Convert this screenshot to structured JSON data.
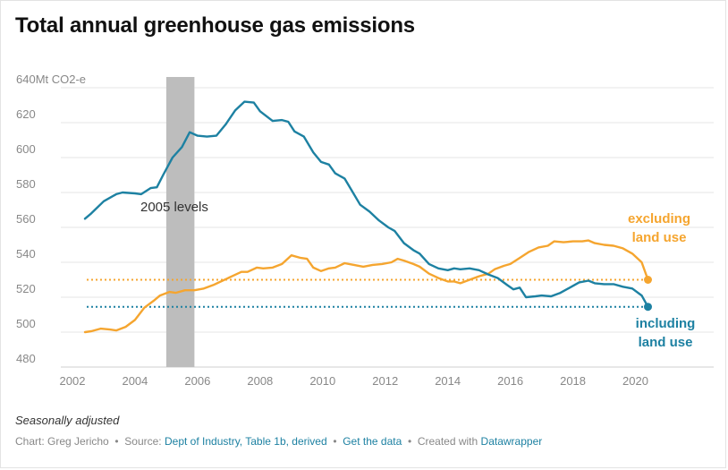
{
  "title": "Total annual greenhouse gas emissions",
  "note": "Seasonally adjusted",
  "footer": {
    "chart_by": "Chart: Greg Jericho",
    "source_prefix": "Source:",
    "source_link": "Dept of Industry, Table 1b, derived",
    "get_data_link": "Get the data",
    "created_with_prefix": "Created with",
    "created_with_link": "Datawrapper"
  },
  "colors": {
    "including": "#1d81a2",
    "excluding": "#f5a52f",
    "band": "#bdbdbd",
    "grid": "#e6e6e6"
  },
  "chart_data": {
    "type": "line",
    "ylim": [
      480,
      640
    ],
    "xlim": [
      2002,
      2021.8
    ],
    "yticks": [
      {
        "value": 640,
        "label": "640Mt CO2-e"
      },
      {
        "value": 620,
        "label": "620"
      },
      {
        "value": 600,
        "label": "600"
      },
      {
        "value": 580,
        "label": "580"
      },
      {
        "value": 560,
        "label": "560"
      },
      {
        "value": 540,
        "label": "540"
      },
      {
        "value": 520,
        "label": "520"
      },
      {
        "value": 500,
        "label": "500"
      },
      {
        "value": 480,
        "label": "480"
      }
    ],
    "xticks": [
      2002,
      2004,
      2006,
      2008,
      2010,
      2012,
      2014,
      2016,
      2018,
      2020
    ],
    "highlight_band": {
      "from": 2005,
      "to": 2005.9,
      "label": "2005 levels"
    },
    "series": [
      {
        "name": "including land use",
        "label_lines": [
          "including",
          "land use"
        ],
        "color": "#1d81a2",
        "end_value": 514.5,
        "reference_line": 514.5,
        "points": [
          [
            2002.4,
            565
          ],
          [
            2002.6,
            568
          ],
          [
            2003.0,
            575
          ],
          [
            2003.4,
            579
          ],
          [
            2003.6,
            580
          ],
          [
            2004.0,
            579.5
          ],
          [
            2004.2,
            579
          ],
          [
            2004.5,
            582.5
          ],
          [
            2004.7,
            583
          ],
          [
            2004.9,
            590
          ],
          [
            2005.2,
            600
          ],
          [
            2005.5,
            606
          ],
          [
            2005.75,
            614.5
          ],
          [
            2006.0,
            612.5
          ],
          [
            2006.3,
            612
          ],
          [
            2006.6,
            612.5
          ],
          [
            2006.9,
            619
          ],
          [
            2007.2,
            627
          ],
          [
            2007.5,
            632
          ],
          [
            2007.8,
            631.5
          ],
          [
            2008.0,
            626.5
          ],
          [
            2008.4,
            621
          ],
          [
            2008.7,
            621.5
          ],
          [
            2008.9,
            620.5
          ],
          [
            2009.1,
            615
          ],
          [
            2009.4,
            612
          ],
          [
            2009.7,
            603
          ],
          [
            2009.95,
            597.5
          ],
          [
            2010.2,
            596
          ],
          [
            2010.4,
            591
          ],
          [
            2010.7,
            588
          ],
          [
            2010.9,
            582
          ],
          [
            2011.2,
            573
          ],
          [
            2011.5,
            569
          ],
          [
            2011.8,
            564
          ],
          [
            2012.1,
            560
          ],
          [
            2012.3,
            558
          ],
          [
            2012.6,
            551
          ],
          [
            2012.9,
            547
          ],
          [
            2013.1,
            545
          ],
          [
            2013.4,
            539
          ],
          [
            2013.7,
            536.5
          ],
          [
            2014.0,
            535.5
          ],
          [
            2014.2,
            536.5
          ],
          [
            2014.4,
            536
          ],
          [
            2014.7,
            536.5
          ],
          [
            2015.0,
            535.5
          ],
          [
            2015.3,
            533
          ],
          [
            2015.6,
            531
          ],
          [
            2015.9,
            527
          ],
          [
            2016.1,
            524.5
          ],
          [
            2016.3,
            525.5
          ],
          [
            2016.5,
            520
          ],
          [
            2016.8,
            520.5
          ],
          [
            2017.0,
            521
          ],
          [
            2017.3,
            520.5
          ],
          [
            2017.6,
            522.5
          ],
          [
            2017.9,
            525.5
          ],
          [
            2018.2,
            528.5
          ],
          [
            2018.5,
            529.5
          ],
          [
            2018.7,
            528
          ],
          [
            2019.0,
            527.5
          ],
          [
            2019.3,
            527.5
          ],
          [
            2019.6,
            526
          ],
          [
            2019.9,
            525
          ],
          [
            2020.2,
            521
          ],
          [
            2020.4,
            514.5
          ]
        ]
      },
      {
        "name": "excluding land use",
        "label_lines": [
          "excluding",
          "land use"
        ],
        "color": "#f5a52f",
        "end_value": 530,
        "reference_line": 530,
        "points": [
          [
            2002.4,
            500
          ],
          [
            2002.6,
            500.5
          ],
          [
            2002.9,
            502
          ],
          [
            2003.2,
            501.5
          ],
          [
            2003.4,
            501
          ],
          [
            2003.7,
            503
          ],
          [
            2004.0,
            507
          ],
          [
            2004.3,
            514
          ],
          [
            2004.6,
            518
          ],
          [
            2004.8,
            521
          ],
          [
            2005.1,
            523
          ],
          [
            2005.3,
            522.5
          ],
          [
            2005.6,
            524
          ],
          [
            2005.9,
            524
          ],
          [
            2006.2,
            525
          ],
          [
            2006.5,
            527
          ],
          [
            2006.8,
            529.5
          ],
          [
            2007.1,
            532
          ],
          [
            2007.4,
            534.5
          ],
          [
            2007.6,
            534.5
          ],
          [
            2007.9,
            537
          ],
          [
            2008.1,
            536.5
          ],
          [
            2008.4,
            537
          ],
          [
            2008.7,
            539
          ],
          [
            2009.0,
            544
          ],
          [
            2009.3,
            542.5
          ],
          [
            2009.5,
            542
          ],
          [
            2009.7,
            537
          ],
          [
            2009.95,
            535
          ],
          [
            2010.2,
            536.5
          ],
          [
            2010.4,
            537
          ],
          [
            2010.7,
            539.5
          ],
          [
            2011.0,
            538.5
          ],
          [
            2011.3,
            537.5
          ],
          [
            2011.6,
            538.5
          ],
          [
            2011.9,
            539
          ],
          [
            2012.2,
            540
          ],
          [
            2012.4,
            542
          ],
          [
            2012.6,
            541
          ],
          [
            2012.9,
            539
          ],
          [
            2013.1,
            537.5
          ],
          [
            2013.4,
            533.5
          ],
          [
            2013.7,
            531
          ],
          [
            2014.0,
            529
          ],
          [
            2014.2,
            529
          ],
          [
            2014.4,
            528
          ],
          [
            2014.7,
            530
          ],
          [
            2015.0,
            532
          ],
          [
            2015.3,
            533.5
          ],
          [
            2015.5,
            536
          ],
          [
            2015.8,
            538
          ],
          [
            2016.0,
            539
          ],
          [
            2016.3,
            542.5
          ],
          [
            2016.6,
            546
          ],
          [
            2016.9,
            548.5
          ],
          [
            2017.2,
            549.5
          ],
          [
            2017.4,
            552
          ],
          [
            2017.7,
            551.5
          ],
          [
            2018.0,
            552
          ],
          [
            2018.3,
            552
          ],
          [
            2018.5,
            552.5
          ],
          [
            2018.7,
            551
          ],
          [
            2019.0,
            550
          ],
          [
            2019.3,
            549.5
          ],
          [
            2019.6,
            548
          ],
          [
            2019.9,
            545
          ],
          [
            2020.2,
            540
          ],
          [
            2020.4,
            530
          ]
        ]
      }
    ]
  }
}
